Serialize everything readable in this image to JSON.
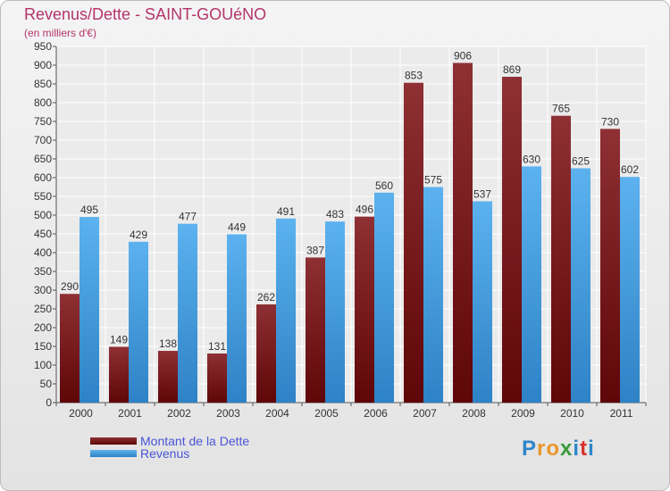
{
  "header": {
    "title": "Revenus/Dette - SAINT-GOUéNO",
    "subtitle": "(en milliers d'€)"
  },
  "chart_data": {
    "type": "bar",
    "categories": [
      "2000",
      "2001",
      "2002",
      "2003",
      "2004",
      "2005",
      "2006",
      "2007",
      "2008",
      "2009",
      "2010",
      "2011"
    ],
    "series": [
      {
        "name": "Montant de la Dette",
        "color": "#7a1a1e",
        "values": [
          290,
          149,
          138,
          131,
          262,
          387,
          496,
          853,
          906,
          869,
          765,
          730
        ]
      },
      {
        "name": "Revenus",
        "color": "#4aa3e6",
        "values": [
          495,
          429,
          477,
          449,
          491,
          483,
          560,
          575,
          537,
          630,
          625,
          602
        ]
      }
    ],
    "ylim": [
      0,
      950
    ],
    "ytick_step": 50,
    "grid": true,
    "legend": "bottom-left",
    "xlabel": "",
    "ylabel": ""
  },
  "legend": {
    "items": [
      {
        "label": "Montant de la Dette",
        "color": "#7a1a1e"
      },
      {
        "label": "Revenus",
        "color": "#4aa3e6"
      }
    ]
  },
  "logo": {
    "letters": [
      "P",
      "r",
      "o",
      "x",
      "i",
      "t",
      "i"
    ],
    "colors": [
      "#2e86c9",
      "#e9962a",
      "#e9962a",
      "#3a9a3a",
      "#2e86c9",
      "#d9302b",
      "#2e86c9"
    ]
  }
}
